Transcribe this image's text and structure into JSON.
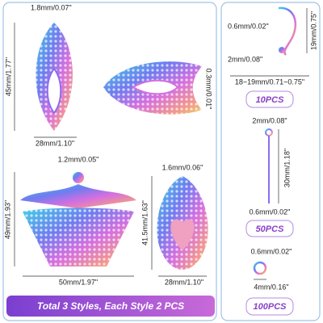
{
  "left": {
    "top_leaf": {
      "thickness": "1.8mm/0.07\"",
      "height": "45mm/1.77\"",
      "width": "28mm/1.10\""
    },
    "horizontal_leaf": {
      "thickness": "0.3mm/0.01\""
    },
    "fan": {
      "thickness": "1.2mm/0.05\"",
      "height": "49mm/1.93\"",
      "width": "50mm/1.97\""
    },
    "teardrop": {
      "thickness": "1.6mm/0.06\"",
      "height": "41.5mm/1.63\"",
      "width": "28mm/1.10\""
    }
  },
  "banner": "Total 3 Styles, Each Style 2 PCS",
  "right": {
    "ear_hook": {
      "wire": "0.6mm/0.02\"",
      "height": "19mm/0.75\"",
      "loop": "2mm/0.08\"",
      "length": "18~19mm/0.71~0.75\"",
      "quantity": "10PCS"
    },
    "eye_pin": {
      "loop": "2mm/0.08\"",
      "length": "30mm/1.18\"",
      "wire": "0.6mm/0.02\"",
      "quantity": "50PCS"
    },
    "jump_ring": {
      "wire": "0.6mm/0.02\"",
      "diameter": "4mm/0.16\"",
      "quantity": "100PCS"
    }
  }
}
